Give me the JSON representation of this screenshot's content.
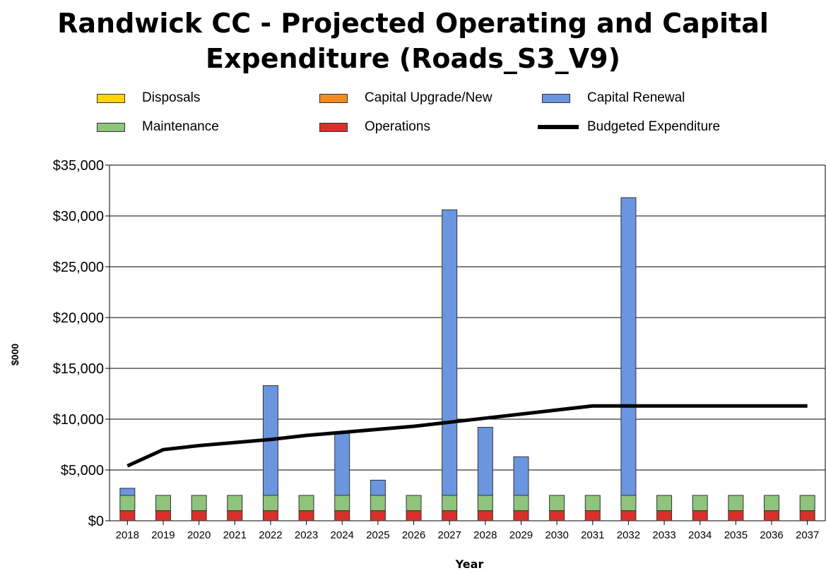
{
  "chart_data": {
    "type": "bar",
    "title": "Randwick CC - Projected Operating and Capital Expenditure (Roads_S3_V9)",
    "xlabel": "Year",
    "ylabel": "$000",
    "ylim": [
      0,
      35000
    ],
    "yticks": [
      "$0",
      "$5,000",
      "$10,000",
      "$15,000",
      "$20,000",
      "$25,000",
      "$30,000",
      "$35,000"
    ],
    "yticks_values": [
      0,
      5000,
      10000,
      15000,
      20000,
      25000,
      30000,
      35000
    ],
    "grid": true,
    "legend_position": "top",
    "categories": [
      "2018",
      "2019",
      "2020",
      "2021",
      "2022",
      "2023",
      "2024",
      "2025",
      "2026",
      "2027",
      "2028",
      "2029",
      "2030",
      "2031",
      "2032",
      "2033",
      "2034",
      "2035",
      "2036",
      "2037"
    ],
    "stacked": true,
    "series": [
      {
        "name": "Operations",
        "color": "#d9302c",
        "values": [
          1000,
          1000,
          1000,
          1000,
          1000,
          1000,
          1000,
          1000,
          1000,
          1000,
          1000,
          1000,
          1000,
          1000,
          1000,
          1000,
          1000,
          1000,
          1000,
          1000
        ]
      },
      {
        "name": "Maintenance",
        "color": "#8ec47c",
        "values": [
          1500,
          1500,
          1500,
          1500,
          1500,
          1500,
          1500,
          1500,
          1500,
          1500,
          1500,
          1500,
          1500,
          1500,
          1500,
          1500,
          1500,
          1500,
          1500,
          1500
        ]
      },
      {
        "name": "Capital Renewal",
        "color": "#6a96e0",
        "values": [
          700,
          0,
          0,
          0,
          10800,
          0,
          6200,
          1500,
          0,
          28100,
          6700,
          3800,
          0,
          0,
          29300,
          0,
          0,
          0,
          0,
          0
        ]
      },
      {
        "name": "Capital Upgrade/New",
        "color": "#f28c1e",
        "values": [
          0,
          0,
          0,
          0,
          0,
          0,
          0,
          0,
          0,
          0,
          0,
          0,
          0,
          0,
          0,
          0,
          0,
          0,
          0,
          0
        ]
      },
      {
        "name": "Disposals",
        "color": "#ffd700",
        "values": [
          0,
          0,
          0,
          0,
          0,
          0,
          0,
          0,
          0,
          0,
          0,
          0,
          0,
          0,
          0,
          0,
          0,
          0,
          0,
          0
        ]
      }
    ],
    "line_series": {
      "name": "Budgeted Expenditure",
      "color": "#000000",
      "values": [
        5400,
        7000,
        7400,
        7700,
        8000,
        8400,
        8700,
        9000,
        9300,
        9700,
        10100,
        10500,
        10900,
        11300,
        11300,
        11300,
        11300,
        11300,
        11300,
        11300
      ]
    }
  },
  "title": "Randwick CC - Projected Operating and Capital Expenditure (Roads_S3_V9)",
  "legend": {
    "disposals": {
      "label": "Disposals",
      "color": "#ffd700"
    },
    "capital_upgrade": {
      "label": "Capital Upgrade/New",
      "color": "#f28c1e"
    },
    "capital_renewal": {
      "label": "Capital Renewal",
      "color": "#6a96e0"
    },
    "maintenance": {
      "label": "Maintenance",
      "color": "#8ec47c"
    },
    "operations": {
      "label": "Operations",
      "color": "#d9302c"
    },
    "budgeted": {
      "label": "Budgeted Expenditure",
      "color": "#000000"
    }
  },
  "axes": {
    "ylabel": "$000",
    "xlabel": "Year"
  }
}
